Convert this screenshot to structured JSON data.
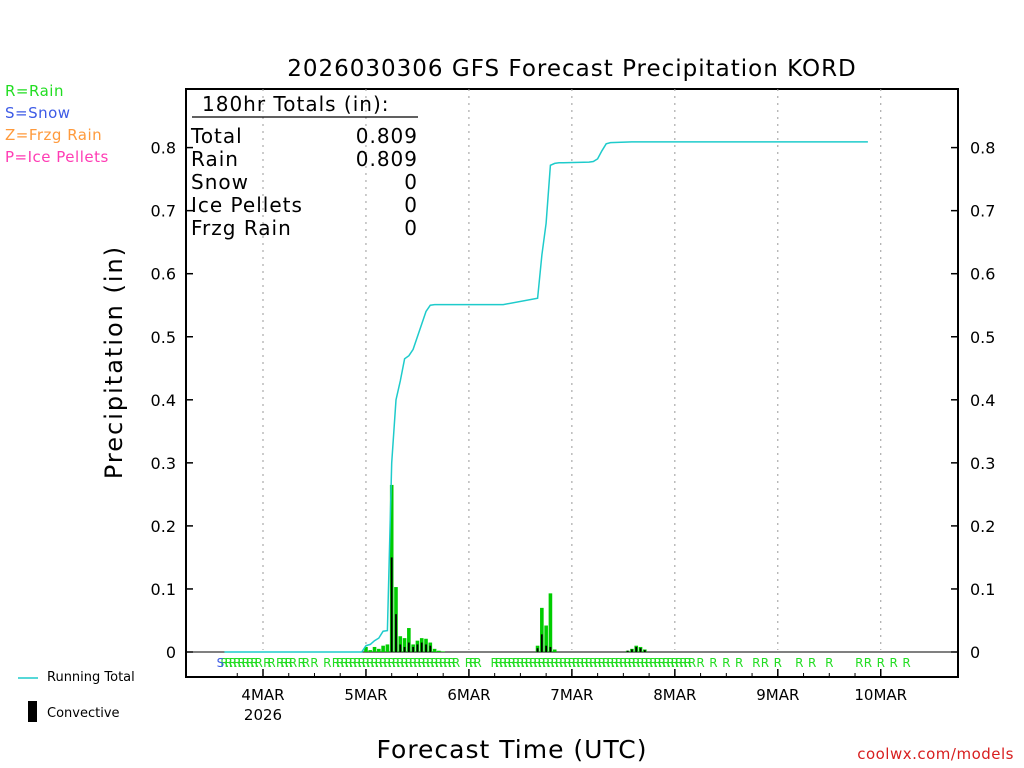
{
  "chart_data": {
    "type": "bar",
    "title": "2026030306 GFS Forecast Precipitation KORD",
    "xlabel": "Forecast Time (UTC)",
    "ylabel": "Precipitation (in)",
    "ylim": [
      0,
      0.9
    ],
    "y_ticks": [
      0,
      0.1,
      0.2,
      0.3,
      0.4,
      0.5,
      0.6,
      0.7,
      0.8
    ],
    "y_tick_labels": [
      "0",
      "0.1",
      "0.2",
      "0.3",
      "0.4",
      "0.5",
      "0.6",
      "0.7",
      "0.8"
    ],
    "x_range_hours": [
      -15,
      135
    ],
    "x_ticks": [
      {
        "hour": -6,
        "label": "4MAR",
        "sublabel": "2026"
      },
      {
        "hour": 18,
        "label": "5MAR"
      },
      {
        "hour": 42,
        "label": "6MAR"
      },
      {
        "hour": 66,
        "label": "7MAR"
      },
      {
        "hour": 90,
        "label": "8MAR"
      },
      {
        "hour": 114,
        "label": "9MAR"
      },
      {
        "hour": 138,
        "label": "10MAR"
      }
    ],
    "totals": {
      "header": "180hr Totals (in):",
      "rows": [
        {
          "label": "Total",
          "value": "0.809"
        },
        {
          "label": "Rain",
          "value": "0.809"
        },
        {
          "label": "Snow",
          "value": "0"
        },
        {
          "label": "Ice Pellets",
          "value": "0"
        },
        {
          "label": "Frzg Rain",
          "value": "0"
        }
      ]
    },
    "precip_types": [
      {
        "text": "R=Rain",
        "color": "#22dd22"
      },
      {
        "text": "S=Snow",
        "color": "#3c5ae6"
      },
      {
        "text": "Z=Frzg Rain",
        "color": "#ff9a3c"
      },
      {
        "text": "P=Ice Pellets",
        "color": "#ff3cb4"
      }
    ],
    "series": [
      {
        "name": "Precipitation",
        "color": "#00cc00",
        "hours": [
          18,
          19,
          20,
          21,
          22,
          23,
          24,
          25,
          26,
          27,
          28,
          29,
          30,
          31,
          32,
          33,
          34,
          35,
          36,
          58,
          59,
          60,
          61,
          62,
          79,
          80,
          81,
          82,
          83
        ],
        "values": [
          0.008,
          0.003,
          0.008,
          0.005,
          0.01,
          0.012,
          0.265,
          0.103,
          0.025,
          0.022,
          0.038,
          0.012,
          0.018,
          0.022,
          0.021,
          0.015,
          0.005,
          0.002,
          0.001,
          0.01,
          0.07,
          0.042,
          0.093,
          0.004,
          0.002,
          0.005,
          0.01,
          0.008,
          0.004
        ]
      },
      {
        "name": "Convective",
        "color": "#000000",
        "hours": [
          24,
          25,
          26,
          27,
          28,
          29,
          30,
          31,
          32,
          33,
          58,
          59,
          60,
          61,
          79,
          80,
          81,
          82,
          83
        ],
        "values": [
          0.15,
          0.06,
          0.012,
          0.008,
          0.015,
          0.008,
          0.012,
          0.015,
          0.012,
          0.01,
          0.006,
          0.028,
          0.01,
          0.008,
          0.002,
          0.004,
          0.008,
          0.006,
          0.003
        ]
      },
      {
        "name": "Running Total",
        "color": "#1ecbcb",
        "hours": [
          -15,
          17,
          18,
          19,
          20,
          21,
          22,
          23,
          24,
          25,
          26,
          27,
          28,
          29,
          30,
          31,
          32,
          33,
          34,
          35,
          36,
          40,
          50,
          58,
          59,
          60,
          61,
          62,
          63,
          64,
          70,
          71,
          72,
          73,
          74,
          75,
          80,
          90,
          100,
          110,
          120,
          135
        ],
        "values": [
          0,
          0,
          0.01,
          0.012,
          0.018,
          0.022,
          0.033,
          0.034,
          0.3,
          0.4,
          0.43,
          0.465,
          0.47,
          0.48,
          0.5,
          0.52,
          0.54,
          0.55,
          0.551,
          0.551,
          0.551,
          0.551,
          0.551,
          0.561,
          0.63,
          0.68,
          0.772,
          0.775,
          0.776,
          0.776,
          0.777,
          0.778,
          0.782,
          0.795,
          0.806,
          0.808,
          0.809,
          0.809,
          0.809,
          0.809,
          0.809,
          0.809
        ]
      }
    ],
    "rain_marker_hours": [
      -15,
      -14,
      -13,
      -12,
      -11,
      -10,
      -9,
      -8,
      -7,
      -5,
      -4,
      -2,
      -1,
      0,
      1,
      3,
      4,
      6,
      9,
      11,
      12,
      13,
      14,
      15,
      16,
      17,
      18,
      19,
      20,
      21,
      22,
      23,
      24,
      25,
      26,
      27,
      28,
      29,
      30,
      31,
      32,
      33,
      34,
      35,
      36,
      37,
      38,
      39,
      42,
      43,
      44,
      48,
      49,
      50,
      51,
      52,
      53,
      54,
      55,
      56,
      57,
      58,
      59,
      60,
      61,
      62,
      63,
      64,
      65,
      66,
      67,
      68,
      69,
      70,
      71,
      72,
      73,
      74,
      75,
      76,
      77,
      78,
      79,
      80,
      81,
      82,
      83,
      84,
      85,
      86,
      87,
      88,
      89,
      90,
      91,
      92,
      93,
      94,
      96,
      99,
      102,
      105,
      109,
      111,
      114,
      119,
      122,
      126,
      133,
      135,
      138,
      141,
      144
    ],
    "snow_marker_hours": [
      -15
    ],
    "legend": {
      "running_total": "Running Total",
      "convective": "Convective"
    },
    "credit": "coolwx.com/models"
  }
}
